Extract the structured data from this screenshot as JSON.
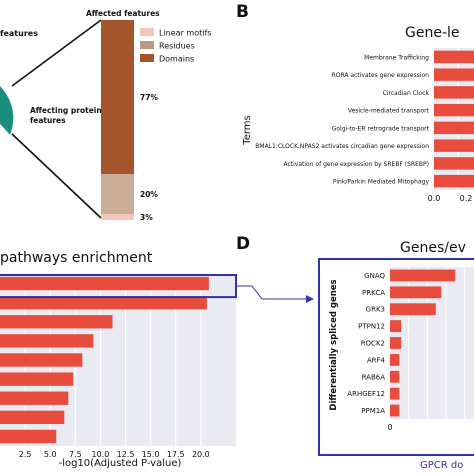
{
  "panel_labels": {
    "b": "B",
    "d": "D"
  },
  "panel_a": {
    "left_cut_label": "features",
    "affecting_label": "Affecting protein features",
    "legend_title": "Affected features",
    "legend": [
      {
        "label": "Linear motifs",
        "color": "#f4c7bd"
      },
      {
        "label": "Residues",
        "color": "#b89a86"
      },
      {
        "label": "Domains",
        "color": "#a5552b"
      }
    ],
    "segments": [
      {
        "name": "Domains",
        "percent": 77,
        "label": "77%",
        "color": "#a5552b"
      },
      {
        "name": "Residues",
        "percent": 20,
        "label": "20%",
        "color": "#c9ad97"
      },
      {
        "name": "Linear motifs",
        "percent": 3,
        "label": "3%",
        "color": "#f4c7bd"
      }
    ],
    "teal_color": "#1a8f7f"
  },
  "chart_data": [
    {
      "id": "gene-level",
      "type": "bar",
      "orientation": "horizontal",
      "title": "Gene-le",
      "ylabel": "Terms",
      "categories": [
        "Membrane Trafficking",
        "RORA activates gene expression",
        "Circadian Clock",
        "Vesicle-mediated transport",
        "Golgi-to-ER retrograde transport",
        "BMAL1:CLOCK,NPAS2 activates circadian gene expression",
        "Activation of gene expression by SREBF (SREBP)",
        "Pink/Parkin Mediated Mitophagy"
      ],
      "values": [
        0.33,
        0.33,
        0.33,
        0.33,
        0.33,
        0.33,
        0.33,
        0.33
      ],
      "xlim": [
        0,
        0.33
      ],
      "xticks": [
        "0.0",
        "0.2"
      ],
      "grid": true
    },
    {
      "id": "pathways",
      "type": "bar",
      "orientation": "horizontal",
      "title": "pathways enrichment",
      "xlabel": "-log10(Adjusted P-value)",
      "values": [
        20.8,
        20.6,
        11.2,
        9.3,
        8.2,
        7.3,
        6.8,
        6.4,
        5.6
      ],
      "xlim": [
        0,
        23.5
      ],
      "xticks": [
        {
          "value": 2.5,
          "label": "2.5"
        },
        {
          "value": 5,
          "label": "5.0"
        },
        {
          "value": 7.5,
          "label": "7.5"
        },
        {
          "value": 10,
          "label": "10.0"
        },
        {
          "value": 12.5,
          "label": "12.5"
        },
        {
          "value": 15,
          "label": "15.0"
        },
        {
          "value": 17.5,
          "label": "17.5"
        },
        {
          "value": 20,
          "label": "20.0"
        }
      ],
      "highlighted_index": 0,
      "grid": true
    },
    {
      "id": "genes-events",
      "type": "bar",
      "orientation": "horizontal",
      "title": "Genes/ev",
      "ylabel": "Differentially spliced genes",
      "xlabel": "GPCR do",
      "categories": [
        "GNAQ",
        "PRKCA",
        "GRK3",
        "PTPN12",
        "ROCK2",
        "ARF4",
        "RAB6A",
        "ARHGEF12",
        "PPM1A"
      ],
      "values": [
        7,
        5.5,
        4.9,
        1.2,
        1.2,
        1.0,
        1.0,
        1.0,
        1.0
      ],
      "xlim": [
        0,
        9
      ],
      "xticks": [
        {
          "value": 0,
          "label": "0"
        }
      ],
      "grid": true
    }
  ],
  "colors": {
    "bar": "#e74c3c",
    "grid_bg": "#eaeaf2",
    "highlight": "#3333aa",
    "axis_text": "#222222"
  }
}
